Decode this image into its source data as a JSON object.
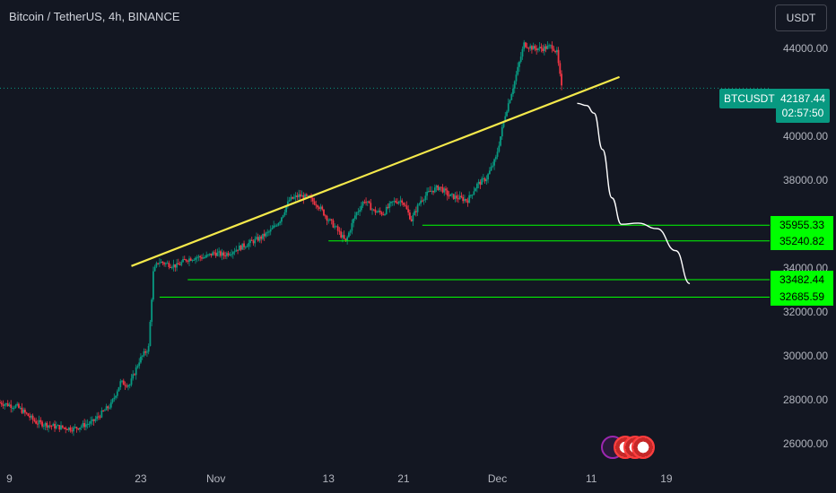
{
  "header": {
    "title": "Bitcoin / TetherUS, 4h, BINANCE",
    "currency": "USDT"
  },
  "price_tag": {
    "symbol": "BTCUSDT",
    "price": "42187.44",
    "countdown": "02:57:50"
  },
  "colors": {
    "background": "#131722",
    "up": "#089981",
    "down": "#f23645",
    "trendline": "#f5e94b",
    "levels": "#00ff00",
    "projection": "#ffffff"
  },
  "chart_data": {
    "type": "candlestick",
    "title": "Bitcoin / TetherUS, 4h, BINANCE",
    "symbol": "BTCUSDT",
    "timeframe": "4h",
    "exchange": "BINANCE",
    "currency": "USDT",
    "last_price": 42187.44,
    "countdown": "02:57:50",
    "y_ticks": [
      "44000.00",
      "40000.00",
      "38000.00",
      "34000.00",
      "32000.00",
      "30000.00",
      "28000.00",
      "26000.00"
    ],
    "y_tick_values": [
      44000,
      40000,
      38000,
      34000,
      32000,
      30000,
      28000,
      26000
    ],
    "x_ticks": [
      "9",
      "23",
      "Nov",
      "13",
      "21",
      "Dec",
      "11",
      "19"
    ],
    "x_tick_days": [
      -22,
      -8,
      0,
      12,
      20,
      30,
      40,
      48
    ],
    "ylim": [
      25000,
      46200
    ],
    "xlim_days": [
      -23,
      59
    ],
    "price_path": [
      [
        -23,
        27900
      ],
      [
        -21,
        27700
      ],
      [
        -19,
        27000
      ],
      [
        -17,
        26800
      ],
      [
        -15,
        26700
      ],
      [
        -13,
        27000
      ],
      [
        -11,
        27800
      ],
      [
        -10,
        28800
      ],
      [
        -9,
        28700
      ],
      [
        -8,
        29800
      ],
      [
        -7,
        30400
      ],
      [
        -6.5,
        33800
      ],
      [
        -6,
        34300
      ],
      [
        -5,
        34200
      ],
      [
        -4,
        34100
      ],
      [
        -3,
        34400
      ],
      [
        -2,
        34500
      ],
      [
        -1,
        34500
      ],
      [
        0,
        34700
      ],
      [
        1,
        34600
      ],
      [
        2,
        34800
      ],
      [
        3,
        35000
      ],
      [
        4,
        35200
      ],
      [
        5,
        35400
      ],
      [
        6,
        35700
      ],
      [
        7,
        36200
      ],
      [
        8,
        37100
      ],
      [
        9,
        37300
      ],
      [
        10,
        37200
      ],
      [
        11,
        36900
      ],
      [
        12,
        36300
      ],
      [
        13,
        35800
      ],
      [
        14,
        35200
      ],
      [
        15,
        36400
      ],
      [
        16,
        37100
      ],
      [
        17,
        36600
      ],
      [
        18,
        36500
      ],
      [
        19,
        37000
      ],
      [
        20,
        37100
      ],
      [
        21,
        36200
      ],
      [
        22,
        37100
      ],
      [
        23,
        37500
      ],
      [
        24,
        37700
      ],
      [
        25,
        37300
      ],
      [
        26,
        37200
      ],
      [
        27,
        37100
      ],
      [
        28,
        37800
      ],
      [
        29,
        38100
      ],
      [
        30,
        39000
      ],
      [
        31,
        41000
      ],
      [
        32,
        42500
      ],
      [
        33,
        44200
      ],
      [
        34,
        44000
      ],
      [
        35,
        44000
      ],
      [
        36,
        44100
      ],
      [
        36.5,
        43800
      ],
      [
        37,
        42200
      ]
    ],
    "trendline": {
      "from": [
        -9,
        34100
      ],
      "to": [
        43,
        42700
      ]
    },
    "projection": [
      [
        38.5,
        41500
      ],
      [
        39.5,
        41400
      ],
      [
        40.3,
        41050
      ],
      [
        41.2,
        39400
      ],
      [
        42.2,
        37200
      ],
      [
        43.2,
        36000
      ],
      [
        45,
        36050
      ],
      [
        47,
        35800
      ],
      [
        49,
        34800
      ],
      [
        50.5,
        33300
      ]
    ],
    "levels": [
      {
        "price": 35955.33,
        "label": "35955.33",
        "from_day": 22
      },
      {
        "price": 35240.82,
        "label": "35240.82",
        "from_day": 12
      },
      {
        "price": 33482.44,
        "label": "33482.44",
        "from_day": -3
      },
      {
        "price": 32685.59,
        "label": "32685.59",
        "from_day": -6
      }
    ]
  }
}
